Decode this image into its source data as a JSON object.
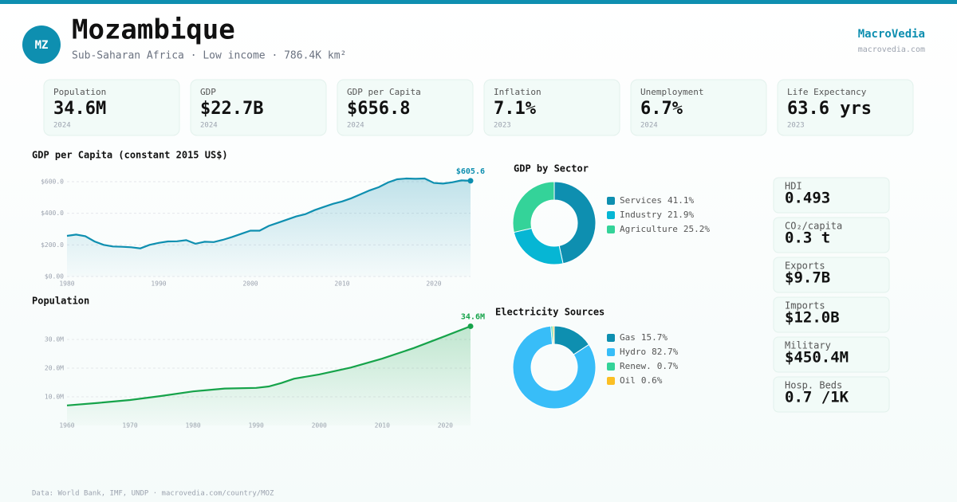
{
  "header": {
    "initials": "MZ",
    "title": "Mozambique",
    "subtitle": "Sub-Saharan Africa · Low income · 786.4K km²",
    "brand": "MacroVedia",
    "site": "macrovedia.com"
  },
  "kpis": [
    {
      "label": "Population",
      "value": "34.6M",
      "year": "2024"
    },
    {
      "label": "GDP",
      "value": "$22.7B",
      "year": "2024"
    },
    {
      "label": "GDP per Capita",
      "value": "$656.8",
      "year": "2024"
    },
    {
      "label": "Inflation",
      "value": "7.1%",
      "year": "2023"
    },
    {
      "label": "Unemployment",
      "value": "6.7%",
      "year": "2024"
    },
    {
      "label": "Life Expectancy",
      "value": "63.6 yrs",
      "year": "2023"
    }
  ],
  "stats": [
    {
      "label": "HDI",
      "value": "0.493"
    },
    {
      "label": "CO₂/capita",
      "value": "0.3 t"
    },
    {
      "label": "Exports",
      "value": "$9.7B"
    },
    {
      "label": "Imports",
      "value": "$12.0B"
    },
    {
      "label": "Military",
      "value": "$450.4M"
    },
    {
      "label": "Hosp. Beds",
      "value": "0.7 /1K"
    }
  ],
  "footer": "Data: World Bank, IMF, UNDP · macrovedia.com/country/MOZ",
  "chart_data": [
    {
      "type": "line",
      "title": "GDP per Capita (constant 2015 US$)",
      "color": "#0e8fb0",
      "x": [
        1980,
        1981,
        1982,
        1983,
        1984,
        1985,
        1986,
        1987,
        1988,
        1989,
        1990,
        1991,
        1992,
        1993,
        1994,
        1995,
        1996,
        1997,
        1998,
        1999,
        2000,
        2001,
        2002,
        2003,
        2004,
        2005,
        2006,
        2007,
        2008,
        2009,
        2010,
        2011,
        2012,
        2013,
        2014,
        2015,
        2016,
        2017,
        2018,
        2019,
        2020,
        2021,
        2022,
        2023,
        2024
      ],
      "values": [
        257,
        265,
        255,
        222,
        200,
        190,
        188,
        185,
        178,
        200,
        213,
        222,
        223,
        230,
        207,
        220,
        218,
        232,
        250,
        270,
        290,
        290,
        320,
        340,
        360,
        380,
        395,
        420,
        440,
        460,
        475,
        495,
        520,
        545,
        565,
        595,
        615,
        620,
        618,
        620,
        592,
        588,
        596,
        608,
        605.6
      ],
      "last_label": "$605.6",
      "xlim": [
        1980,
        2024
      ],
      "xticks": [
        1980,
        1990,
        2000,
        2010,
        2020
      ],
      "ylim": [
        0,
        600
      ],
      "yticks": [
        {
          "value": 0,
          "label": "$0.00"
        },
        {
          "value": 200,
          "label": "$200.0"
        },
        {
          "value": 400,
          "label": "$400.0"
        },
        {
          "value": 600,
          "label": "$600.0"
        }
      ],
      "grid": true
    },
    {
      "type": "line",
      "title": "Population",
      "color": "#16a34a",
      "x": [
        1960,
        1965,
        1970,
        1975,
        1980,
        1985,
        1990,
        1992,
        1994,
        1996,
        2000,
        2005,
        2010,
        2015,
        2020,
        2024
      ],
      "values": [
        7.0,
        7.9,
        8.9,
        10.3,
        11.9,
        12.9,
        13.1,
        13.6,
        14.8,
        16.3,
        17.8,
        20.2,
        23.3,
        27.0,
        31.2,
        34.6
      ],
      "last_label": "34.6M",
      "xlim": [
        1960,
        2024
      ],
      "xticks": [
        1960,
        1970,
        1980,
        1990,
        2000,
        2010,
        2020
      ],
      "ylim": [
        0,
        35
      ],
      "yticks": [
        {
          "value": 10,
          "label": "10.0M"
        },
        {
          "value": 20,
          "label": "20.0M"
        },
        {
          "value": 30,
          "label": "30.0M"
        }
      ],
      "grid": true
    },
    {
      "type": "donut",
      "title": "GDP by Sector",
      "categories": [
        "Services",
        "Industry",
        "Agriculture"
      ],
      "values": [
        41.1,
        21.9,
        25.2
      ],
      "value_labels": [
        "41.1%",
        "21.9%",
        "25.2%"
      ],
      "colors": [
        "#0e8fb0",
        "#06b6d4",
        "#34d399"
      ]
    },
    {
      "type": "donut",
      "title": "Electricity Sources",
      "categories": [
        "Gas",
        "Hydro",
        "Renew.",
        "Oil"
      ],
      "values": [
        15.7,
        82.7,
        0.7,
        0.6
      ],
      "value_labels": [
        "15.7%",
        "82.7%",
        "0.7%",
        "0.6%"
      ],
      "colors": [
        "#0e8fb0",
        "#38bdf8",
        "#34d399",
        "#fbbf24"
      ]
    }
  ]
}
